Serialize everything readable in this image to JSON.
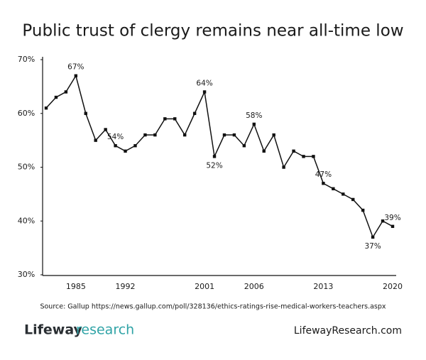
{
  "chart_data": {
    "type": "line",
    "title": "Public trust of clergy remains near all-time low",
    "categories": [
      null,
      null,
      null,
      "1985",
      null,
      null,
      null,
      null,
      "1992",
      null,
      null,
      null,
      null,
      null,
      null,
      null,
      "2001",
      null,
      null,
      null,
      null,
      "2006",
      null,
      null,
      null,
      null,
      null,
      null,
      "2013",
      null,
      null,
      null,
      null,
      null,
      null,
      "2020"
    ],
    "series": [
      {
        "name": "Clergy",
        "color": "#111111",
        "values": [
          61,
          63,
          64,
          67,
          60,
          55,
          57,
          54,
          53,
          54,
          56,
          56,
          59,
          59,
          56,
          60,
          64,
          52,
          56,
          56,
          54,
          58,
          53,
          56,
          50,
          53,
          52,
          52,
          47,
          46,
          45,
          44,
          42,
          37,
          40,
          39
        ],
        "value_labels": [
          null,
          null,
          null,
          "67%",
          null,
          null,
          null,
          "54%",
          null,
          null,
          null,
          null,
          null,
          null,
          null,
          null,
          "64%",
          "52%",
          null,
          null,
          null,
          "58%",
          null,
          null,
          null,
          null,
          null,
          null,
          "47%",
          null,
          null,
          null,
          null,
          "37%",
          null,
          "39%"
        ]
      }
    ],
    "ylim": [
      30,
      70
    ],
    "yticks": [
      {
        "value": 30,
        "label": "30%"
      },
      {
        "value": 40,
        "label": "40%"
      },
      {
        "value": 50,
        "label": "50%"
      },
      {
        "value": 60,
        "label": "60%"
      },
      {
        "value": 70,
        "label": "70%"
      }
    ],
    "grid": false,
    "source": "Source: Gallup https://news.gallup.com/poll/328136/ethics-ratings-rise-medical-workers-teachers.aspx",
    "brand": {
      "name": "Lifeway",
      "suffix": "research",
      "url": "LifewayResearch.com"
    }
  }
}
